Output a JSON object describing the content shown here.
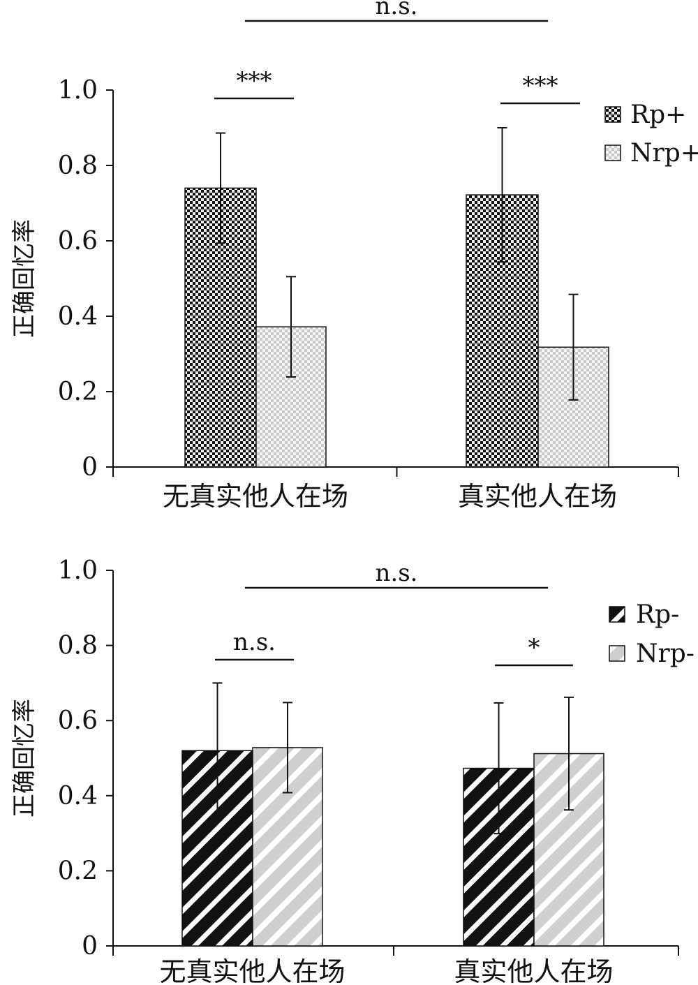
{
  "chart_data": [
    {
      "type": "bar",
      "ylabel": "正确回忆率",
      "ylim": [
        0,
        1.0
      ],
      "yticks": [
        "0",
        "0.2",
        "0.4",
        "0.6",
        "0.8",
        "1.0"
      ],
      "categories": [
        "无真实他人在场",
        "真实他人在场"
      ],
      "legend_position": "top-right",
      "series": [
        {
          "name": "Rp+",
          "pattern": "checker-dark",
          "values": [
            0.74,
            0.722
          ],
          "errors": [
            0.146,
            0.178
          ]
        },
        {
          "name": "Nrp+",
          "pattern": "checker-light",
          "values": [
            0.372,
            0.318
          ],
          "errors": [
            0.133,
            0.14
          ]
        }
      ],
      "pair_annotations": [
        {
          "label": "***",
          "category": 0
        },
        {
          "label": "***",
          "category": 1
        }
      ],
      "group_annotation": {
        "label": "n.s."
      }
    },
    {
      "type": "bar",
      "ylabel": "正确回忆率",
      "ylim": [
        0,
        1.0
      ],
      "yticks": [
        "0",
        "0.2",
        "0.4",
        "0.6",
        "0.8",
        "1.0"
      ],
      "categories": [
        "无真实他人在场",
        "真实他人在场"
      ],
      "legend_position": "top-right",
      "series": [
        {
          "name": "Rp-",
          "pattern": "stripe-dark",
          "values": [
            0.52,
            0.473
          ],
          "errors": [
            0.18,
            0.174
          ]
        },
        {
          "name": "Nrp-",
          "pattern": "stripe-light",
          "values": [
            0.528,
            0.512
          ],
          "errors": [
            0.12,
            0.15
          ]
        }
      ],
      "pair_annotations": [
        {
          "label": "n.s.",
          "category": 0
        },
        {
          "label": "*",
          "category": 1
        }
      ],
      "group_annotation": {
        "label": "n.s."
      }
    }
  ]
}
